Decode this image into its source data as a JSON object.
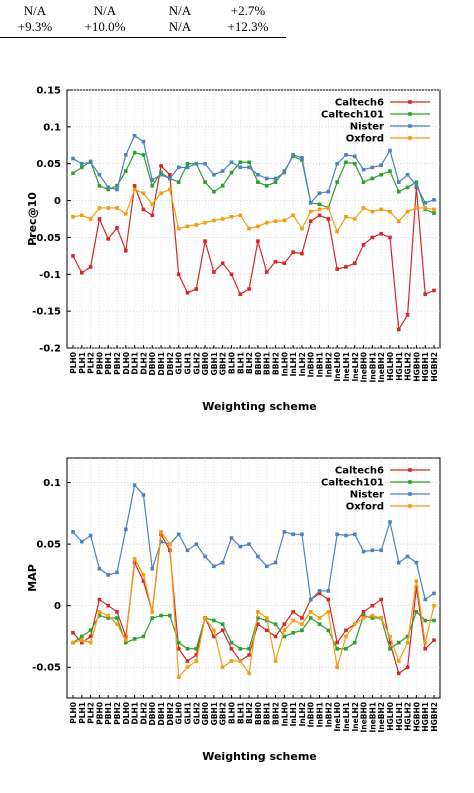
{
  "table_fragment": {
    "rows": [
      [
        "N/A",
        "N/A",
        "N/A",
        "+2.7%"
      ],
      [
        "+9.3%",
        "+10.0%",
        "N/A",
        "+12.3%"
      ]
    ]
  },
  "chart_data": [
    {
      "type": "line",
      "xlabel": "Weighting scheme",
      "ylabel": "Prec@10",
      "ylim": [
        -0.2,
        0.15
      ],
      "yticks": [
        -0.2,
        -0.15,
        -0.1,
        -0.05,
        0,
        0.05,
        0.1,
        0.15
      ],
      "ytick_labels": [
        "-0.2",
        "-0.15",
        "-0.1",
        "-0.05",
        "0",
        "0.05",
        "0.1",
        "0.15"
      ],
      "grid": true,
      "legend_position": "top-right",
      "categories": [
        "PLH0",
        "PLH1",
        "PLH2",
        "PBH0",
        "PBH1",
        "PBH2",
        "DLH0",
        "DLH1",
        "DLH2",
        "DBH0",
        "DBH1",
        "DBH2",
        "GLH0",
        "GLH1",
        "GLH2",
        "GBH0",
        "GBH1",
        "GBH2",
        "BLH0",
        "BLH1",
        "BLH2",
        "BBH0",
        "BBH1",
        "BBH2",
        "InLH0",
        "InLH1",
        "InLH2",
        "InBH0",
        "InBH1",
        "InBH2",
        "IneLH0",
        "IneLH1",
        "IneLH2",
        "IneBH0",
        "IneBH1",
        "IneBH2",
        "HGLH0",
        "HGLH1",
        "HGLH2",
        "HGBH0",
        "HGBH1",
        "HGBH2"
      ],
      "series": [
        {
          "name": "Caltech6",
          "color": "#d62728",
          "values": [
            -0.075,
            -0.098,
            -0.09,
            -0.025,
            -0.052,
            -0.037,
            -0.068,
            0.02,
            -0.012,
            -0.02,
            0.047,
            0.035,
            -0.1,
            -0.125,
            -0.12,
            -0.055,
            -0.097,
            -0.085,
            -0.1,
            -0.127,
            -0.12,
            -0.055,
            -0.097,
            -0.083,
            -0.085,
            -0.07,
            -0.072,
            -0.028,
            -0.02,
            -0.025,
            -0.093,
            -0.09,
            -0.085,
            -0.06,
            -0.05,
            -0.045,
            -0.05,
            -0.175,
            -0.155,
            0.018,
            -0.127,
            -0.122
          ]
        },
        {
          "name": "Caltech101",
          "color": "#2ca02c",
          "values": [
            0.037,
            0.045,
            0.053,
            0.02,
            0.015,
            0.02,
            0.04,
            0.065,
            0.062,
            0.02,
            0.038,
            0.03,
            0.025,
            0.05,
            0.05,
            0.025,
            0.012,
            0.02,
            0.038,
            0.052,
            0.052,
            0.025,
            0.02,
            0.025,
            0.04,
            0.06,
            0.055,
            -0.003,
            -0.005,
            -0.01,
            0.025,
            0.052,
            0.05,
            0.025,
            0.03,
            0.035,
            0.04,
            0.012,
            0.018,
            0.025,
            -0.012,
            -0.017
          ]
        },
        {
          "name": "Nister",
          "color": "#4f81bd",
          "values": [
            0.057,
            0.05,
            0.052,
            0.035,
            0.018,
            0.015,
            0.062,
            0.088,
            0.08,
            0.028,
            0.035,
            0.03,
            0.045,
            0.045,
            0.05,
            0.05,
            0.035,
            0.04,
            0.052,
            0.045,
            0.045,
            0.035,
            0.03,
            0.03,
            0.038,
            0.062,
            0.058,
            -0.003,
            0.01,
            0.012,
            0.05,
            0.062,
            0.06,
            0.042,
            0.045,
            0.048,
            0.068,
            0.025,
            0.035,
            0.02,
            -0.003,
            0.001
          ]
        },
        {
          "name": "Oxford",
          "color": "#f39c12",
          "values": [
            -0.022,
            -0.02,
            -0.025,
            -0.01,
            -0.01,
            -0.01,
            -0.018,
            0.015,
            0.01,
            -0.005,
            0.01,
            0.015,
            -0.038,
            -0.035,
            -0.033,
            -0.03,
            -0.027,
            -0.025,
            -0.022,
            -0.02,
            -0.038,
            -0.035,
            -0.03,
            -0.028,
            -0.027,
            -0.02,
            -0.038,
            -0.015,
            -0.012,
            -0.01,
            -0.042,
            -0.022,
            -0.025,
            -0.01,
            -0.015,
            -0.012,
            -0.015,
            -0.028,
            -0.015,
            -0.01,
            -0.01,
            -0.012
          ]
        }
      ]
    },
    {
      "type": "line",
      "xlabel": "Weighting scheme",
      "ylabel": "MAP",
      "ylim": [
        -0.075,
        0.12
      ],
      "yticks": [
        -0.05,
        0,
        0.05,
        0.1
      ],
      "ytick_labels": [
        "-0.05",
        "0",
        "0.05",
        "0.1"
      ],
      "grid": true,
      "legend_position": "top-right",
      "categories": [
        "PLH0",
        "PLH1",
        "PLH2",
        "PBH0",
        "PBH1",
        "PBH2",
        "DLH0",
        "DLH1",
        "DLH2",
        "DBH0",
        "DBH1",
        "DBH2",
        "GLH0",
        "GLH1",
        "GLH2",
        "GBH0",
        "GBH1",
        "GBH2",
        "BLH0",
        "BLH1",
        "BLH2",
        "BBH0",
        "BBH1",
        "BBH2",
        "InLH0",
        "InLH1",
        "InLH2",
        "InBH0",
        "InBH1",
        "InBH2",
        "IneLH0",
        "IneLH1",
        "IneLH2",
        "IneBH0",
        "IneBH1",
        "IneBH2",
        "HGLH0",
        "HGLH1",
        "HGLH2",
        "HGBH0",
        "HGBH1",
        "HGBH2"
      ],
      "series": [
        {
          "name": "Caltech6",
          "color": "#d62728",
          "values": [
            -0.022,
            -0.03,
            -0.025,
            0.005,
            0.0,
            -0.005,
            -0.025,
            0.035,
            0.02,
            -0.005,
            0.058,
            0.045,
            -0.035,
            -0.045,
            -0.04,
            -0.01,
            -0.025,
            -0.02,
            -0.035,
            -0.045,
            -0.04,
            -0.015,
            -0.02,
            -0.025,
            -0.015,
            -0.005,
            -0.01,
            0.005,
            0.01,
            0.005,
            -0.03,
            -0.02,
            -0.015,
            -0.005,
            0.0,
            0.005,
            -0.03,
            -0.055,
            -0.05,
            0.015,
            -0.035,
            -0.028
          ]
        },
        {
          "name": "Caltech101",
          "color": "#2ca02c",
          "values": [
            -0.03,
            -0.025,
            -0.02,
            -0.008,
            -0.01,
            -0.01,
            -0.03,
            -0.027,
            -0.025,
            -0.01,
            -0.008,
            -0.008,
            -0.03,
            -0.035,
            -0.035,
            -0.01,
            -0.012,
            -0.015,
            -0.03,
            -0.035,
            -0.035,
            -0.01,
            -0.012,
            -0.015,
            -0.025,
            -0.022,
            -0.02,
            -0.01,
            -0.015,
            -0.02,
            -0.035,
            -0.035,
            -0.03,
            -0.008,
            -0.01,
            -0.01,
            -0.035,
            -0.03,
            -0.025,
            -0.005,
            -0.012,
            -0.012
          ]
        },
        {
          "name": "Nister",
          "color": "#4f81bd",
          "values": [
            0.06,
            0.052,
            0.057,
            0.03,
            0.025,
            0.027,
            0.062,
            0.098,
            0.09,
            0.03,
            0.052,
            0.05,
            0.058,
            0.045,
            0.05,
            0.04,
            0.032,
            0.035,
            0.055,
            0.048,
            0.05,
            0.04,
            0.032,
            0.035,
            0.06,
            0.058,
            0.058,
            0.005,
            0.012,
            0.012,
            0.058,
            0.057,
            0.058,
            0.044,
            0.045,
            0.045,
            0.068,
            0.035,
            0.04,
            0.035,
            0.005,
            0.01
          ]
        },
        {
          "name": "Oxford",
          "color": "#f39c12",
          "values": [
            -0.03,
            -0.028,
            -0.03,
            -0.005,
            -0.008,
            -0.015,
            -0.028,
            0.038,
            0.025,
            -0.005,
            0.06,
            0.05,
            -0.058,
            -0.05,
            -0.045,
            -0.01,
            -0.02,
            -0.05,
            -0.045,
            -0.045,
            -0.055,
            -0.005,
            -0.01,
            -0.045,
            -0.02,
            -0.012,
            -0.015,
            -0.005,
            -0.01,
            -0.005,
            -0.05,
            -0.025,
            -0.015,
            -0.01,
            -0.008,
            -0.01,
            -0.025,
            -0.045,
            -0.03,
            0.02,
            -0.03,
            0.0
          ]
        }
      ]
    }
  ]
}
